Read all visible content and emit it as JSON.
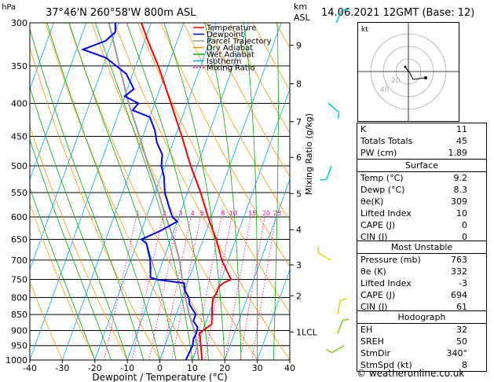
{
  "header": {
    "location": "37°46'N  260°58'W  800m  ASL",
    "datetime": "14.06.2021  12GMT  (Base: 12)",
    "hpa_label": "hPa",
    "km_label": "km",
    "asl_label": "ASL"
  },
  "legend": [
    {
      "label": "Temperature",
      "color": "#ff0000",
      "dash": false
    },
    {
      "label": "Dewpoint",
      "color": "#0000ff",
      "dash": false
    },
    {
      "label": "Parcel Trajectory",
      "color": "#999999",
      "dash": false
    },
    {
      "label": "Dry Adiabat",
      "color": "#ff9900",
      "dash": false
    },
    {
      "label": "Wet Adiabat",
      "color": "#00aa00",
      "dash": false
    },
    {
      "label": "Isotherm",
      "color": "#00aaff",
      "dash": false
    },
    {
      "label": "Mixing Ratio",
      "color": "#ff00aa",
      "dash": true
    }
  ],
  "chart_data": {
    "type": "skew-t",
    "xlabel": "Dewpoint / Temperature (°C)",
    "x_ticks": [
      -40,
      -30,
      -20,
      -10,
      0,
      10,
      20,
      30,
      40
    ],
    "xlim": [
      -40,
      40
    ],
    "pressure_ticks": [
      300,
      350,
      400,
      450,
      500,
      550,
      600,
      650,
      700,
      750,
      800,
      850,
      900,
      950,
      1000
    ],
    "ylim_hpa": [
      1000,
      300
    ],
    "km_ticks": [
      {
        "km": "1LCL",
        "p": 905
      },
      {
        "km": "2",
        "p": 795
      },
      {
        "km": "3",
        "p": 712
      },
      {
        "km": "4",
        "p": 628
      },
      {
        "km": "5",
        "p": 552
      },
      {
        "km": "6",
        "p": 485
      },
      {
        "km": "7",
        "p": 427
      },
      {
        "km": "8",
        "p": 373
      },
      {
        "km": "9",
        "p": 325
      }
    ],
    "mixing_ratio_label": "Mixing Ratio (g/kg)",
    "mixing_ratio_lines": [
      1,
      2,
      3,
      4,
      5,
      8,
      10,
      15,
      20,
      25
    ],
    "temperature": [
      [
        1000,
        13
      ],
      [
        950,
        11
      ],
      [
        925,
        10
      ],
      [
        910,
        9.2
      ],
      [
        900,
        10
      ],
      [
        880,
        12
      ],
      [
        850,
        11
      ],
      [
        820,
        10
      ],
      [
        800,
        9.5
      ],
      [
        790,
        10
      ],
      [
        770,
        10
      ],
      [
        760,
        11
      ],
      [
        750,
        13
      ],
      [
        740,
        12
      ],
      [
        700,
        8
      ],
      [
        650,
        4
      ],
      [
        600,
        -1
      ],
      [
        550,
        -6
      ],
      [
        500,
        -12
      ],
      [
        450,
        -18
      ],
      [
        400,
        -25
      ],
      [
        350,
        -33
      ],
      [
        320,
        -39
      ],
      [
        300,
        -43
      ]
    ],
    "dewpoint": [
      [
        1000,
        8
      ],
      [
        950,
        8.5
      ],
      [
        925,
        8
      ],
      [
        910,
        8.3
      ],
      [
        890,
        8
      ],
      [
        870,
        6
      ],
      [
        850,
        6
      ],
      [
        820,
        3
      ],
      [
        800,
        2
      ],
      [
        780,
        0
      ],
      [
        760,
        -1
      ],
      [
        750,
        -10
      ],
      [
        745,
        -12
      ],
      [
        700,
        -14
      ],
      [
        660,
        -17
      ],
      [
        650,
        -19
      ],
      [
        630,
        -14
      ],
      [
        610,
        -10
      ],
      [
        600,
        -12
      ],
      [
        580,
        -14
      ],
      [
        550,
        -17
      ],
      [
        520,
        -19
      ],
      [
        500,
        -21
      ],
      [
        480,
        -22
      ],
      [
        460,
        -25
      ],
      [
        440,
        -27
      ],
      [
        420,
        -30
      ],
      [
        410,
        -36
      ],
      [
        400,
        -35
      ],
      [
        390,
        -40
      ],
      [
        380,
        -38
      ],
      [
        360,
        -42
      ],
      [
        340,
        -50
      ],
      [
        330,
        -58
      ],
      [
        320,
        -52
      ],
      [
        310,
        -50
      ],
      [
        300,
        -51
      ]
    ],
    "parcel": [
      [
        1000,
        12
      ],
      [
        910,
        8
      ],
      [
        850,
        4
      ],
      [
        800,
        1
      ],
      [
        750,
        -2
      ],
      [
        700,
        -5
      ],
      [
        650,
        -9
      ],
      [
        600,
        -14
      ],
      [
        550,
        -19
      ],
      [
        500,
        -25
      ],
      [
        450,
        -31
      ],
      [
        400,
        -38
      ],
      [
        350,
        -45
      ],
      [
        300,
        -53
      ]
    ]
  },
  "hodograph": {
    "label": "kt",
    "rings": [
      "20",
      "40"
    ]
  },
  "indices": [
    {
      "k": "K",
      "v": "11"
    },
    {
      "k": "Totals Totals",
      "v": "45"
    },
    {
      "k": "PW (cm)",
      "v": "1.89"
    }
  ],
  "surface": {
    "title": "Surface",
    "rows": [
      {
        "k": "Temp (°C)",
        "v": "9.2"
      },
      {
        "k": "Dewp (°C)",
        "v": "8.3"
      },
      {
        "k": "θe(K)",
        "v": "309"
      },
      {
        "k": "Lifted Index",
        "v": "10"
      },
      {
        "k": "CAPE (J)",
        "v": "0"
      },
      {
        "k": "CIN (J)",
        "v": "0"
      }
    ]
  },
  "unstable": {
    "title": "Most Unstable",
    "rows": [
      {
        "k": "Pressure (mb)",
        "v": "763"
      },
      {
        "k": "θe (K)",
        "v": "332"
      },
      {
        "k": "Lifted Index",
        "v": "-3"
      },
      {
        "k": "CAPE (J)",
        "v": "694"
      },
      {
        "k": "CIN (J)",
        "v": "61"
      }
    ]
  },
  "hodo_table": {
    "title": "Hodograph",
    "rows": [
      {
        "k": "EH",
        "v": "32"
      },
      {
        "k": "SREH",
        "v": "50"
      },
      {
        "k": "StmDir",
        "v": "340°"
      },
      {
        "k": "StmSpd (kt)",
        "v": "8"
      }
    ]
  },
  "footer": "© weatheronline.co.uk"
}
